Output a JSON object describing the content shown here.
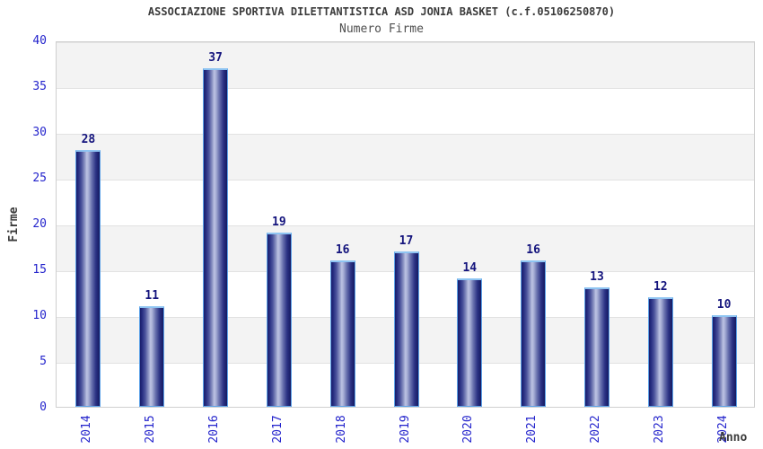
{
  "header": {
    "title": "ASSOCIAZIONE SPORTIVA DILETTANTISTICA ASD JONIA BASKET (c.f.05106250870)",
    "subtitle": "Numero Firme"
  },
  "chart_data": {
    "type": "bar",
    "title": "ASSOCIAZIONE SPORTIVA DILETTANTISTICA ASD JONIA BASKET (c.f.05106250870)",
    "subtitle": "Numero Firme",
    "categories": [
      "2014",
      "2015",
      "2016",
      "2017",
      "2018",
      "2019",
      "2020",
      "2021",
      "2022",
      "2023",
      "2024"
    ],
    "values": [
      28,
      11,
      37,
      19,
      16,
      17,
      14,
      16,
      13,
      12,
      10
    ],
    "xlabel": "Anno",
    "ylabel": "Firme",
    "ylim": [
      0,
      40
    ],
    "yticks": [
      0,
      5,
      10,
      15,
      20,
      25,
      30,
      35,
      40
    ],
    "grid": "horizontal alternating bands with gridlines every 5 units",
    "legend": "none",
    "value_labels_shown": true,
    "colors": {
      "bar_dark": "#1a1f71",
      "bar_highlight": "#bcc3e3",
      "bar_border": "#5da2e8",
      "tick_label": "#2424cc",
      "value_label": "#14147d",
      "band_gray": "#f3f3f3",
      "band_white": "#ffffff",
      "gridline": "#e2e2e2",
      "plot_border": "#cfcfcf",
      "text": "#3b3b3b"
    }
  }
}
